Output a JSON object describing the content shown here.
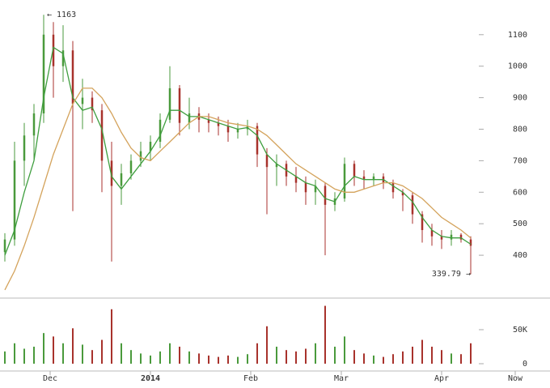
{
  "chart_data": {
    "type": "ohlc",
    "x": [
      1,
      4,
      7,
      10,
      13,
      16,
      19,
      22,
      25,
      28,
      31,
      34,
      37,
      40,
      43,
      46,
      49,
      52,
      55,
      58,
      61,
      64,
      67,
      70,
      73,
      76,
      79,
      82,
      85,
      88,
      91,
      94,
      97,
      100,
      103,
      106,
      109,
      112,
      115,
      118,
      121,
      124,
      127,
      130,
      133,
      136,
      139,
      142,
      145
    ],
    "open": [
      410,
      450,
      700,
      780,
      850,
      1100,
      1000,
      1050,
      880,
      900,
      860,
      700,
      620,
      660,
      700,
      730,
      760,
      830,
      930,
      820,
      850,
      830,
      820,
      810,
      790,
      800,
      810,
      720,
      680,
      690,
      650,
      630,
      600,
      620,
      560,
      580,
      690,
      650,
      640,
      650,
      630,
      600,
      590,
      530,
      480,
      460,
      450,
      465,
      450
    ],
    "high": [
      470,
      760,
      820,
      880,
      1163,
      1140,
      1130,
      1080,
      960,
      920,
      880,
      760,
      690,
      720,
      760,
      780,
      850,
      1000,
      940,
      900,
      870,
      850,
      840,
      830,
      820,
      830,
      820,
      740,
      720,
      700,
      680,
      650,
      640,
      630,
      600,
      710,
      700,
      670,
      660,
      660,
      640,
      610,
      600,
      540,
      500,
      480,
      480,
      470,
      460
    ],
    "low": [
      380,
      430,
      620,
      700,
      820,
      900,
      950,
      540,
      800,
      820,
      600,
      380,
      560,
      640,
      680,
      700,
      740,
      820,
      780,
      800,
      790,
      790,
      780,
      760,
      770,
      780,
      680,
      530,
      620,
      620,
      600,
      560,
      560,
      400,
      540,
      570,
      620,
      610,
      620,
      610,
      580,
      540,
      500,
      440,
      430,
      420,
      430,
      440,
      339.79
    ],
    "close": [
      450,
      700,
      780,
      850,
      1100,
      1000,
      1050,
      880,
      900,
      860,
      700,
      620,
      660,
      700,
      730,
      760,
      830,
      930,
      820,
      850,
      830,
      820,
      810,
      790,
      800,
      810,
      720,
      680,
      690,
      650,
      630,
      600,
      620,
      560,
      580,
      690,
      650,
      640,
      650,
      630,
      600,
      590,
      530,
      480,
      460,
      450,
      465,
      450,
      430
    ],
    "volume": [
      18000,
      30000,
      22000,
      25000,
      45000,
      40000,
      30000,
      52000,
      28000,
      20000,
      35000,
      80000,
      30000,
      20000,
      15000,
      12000,
      18000,
      30000,
      25000,
      18000,
      15000,
      12000,
      10000,
      12000,
      10000,
      14000,
      30000,
      55000,
      25000,
      20000,
      18000,
      22000,
      30000,
      85000,
      25000,
      40000,
      20000,
      15000,
      12000,
      10000,
      14000,
      18000,
      25000,
      35000,
      25000,
      20000,
      15000,
      14000,
      30000
    ],
    "up_color": "#4a9a3c",
    "down_color": "#a8322c",
    "lines": [
      {
        "color": "#3e9e3e",
        "values": [
          400,
          480,
          600,
          700,
          900,
          1060,
          1040,
          900,
          860,
          870,
          800,
          650,
          610,
          650,
          690,
          730,
          780,
          860,
          860,
          840,
          840,
          830,
          820,
          810,
          800,
          805,
          780,
          720,
          690,
          670,
          650,
          630,
          620,
          580,
          570,
          620,
          650,
          640,
          640,
          640,
          620,
          600,
          570,
          520,
          480,
          460,
          455,
          455,
          435
        ]
      },
      {
        "color": "#d4a35c",
        "values": [
          290,
          350,
          430,
          520,
          620,
          720,
          800,
          880,
          930,
          930,
          900,
          850,
          790,
          740,
          710,
          700,
          730,
          760,
          790,
          820,
          840,
          840,
          830,
          820,
          815,
          810,
          800,
          780,
          750,
          720,
          690,
          670,
          650,
          630,
          610,
          600,
          600,
          610,
          620,
          630,
          630,
          620,
          600,
          580,
          550,
          520,
          500,
          480,
          455
        ]
      }
    ],
    "xlim": [
      -0.5,
      169.5
    ],
    "xticks": [
      {
        "value": 15,
        "label": "Dec"
      },
      {
        "value": 46,
        "label": "2014"
      },
      {
        "value": 77,
        "label": "Feb"
      },
      {
        "value": 105,
        "label": "Mar"
      },
      {
        "value": 136,
        "label": "Apr"
      },
      {
        "value": 158.75,
        "label": "Now"
      }
    ],
    "ylim": [
      264,
      1210
    ],
    "yticks": [
      400,
      500,
      600,
      700,
      800,
      900,
      1000,
      1100
    ],
    "volume_ylim": [
      0,
      94000
    ],
    "volume_yticks": [
      0,
      {
        "value": 50000,
        "label": "50K"
      }
    ],
    "annotations": [
      "← 1163",
      "339.79 →"
    ]
  }
}
